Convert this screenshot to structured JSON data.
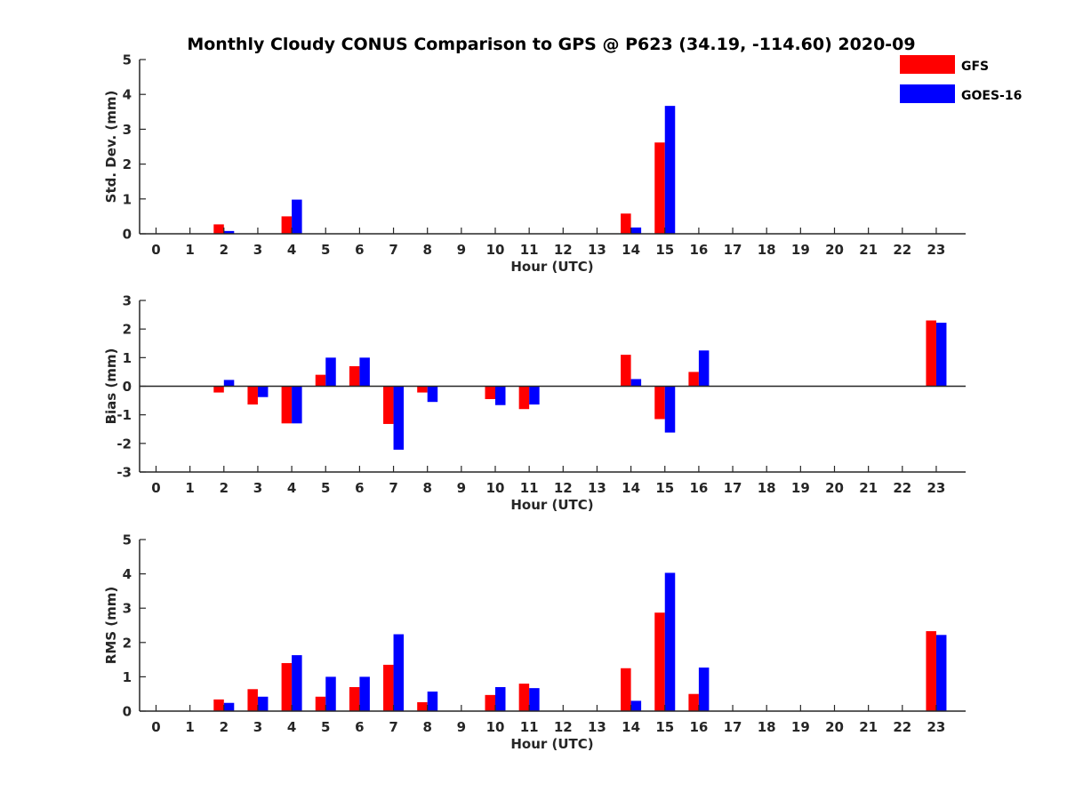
{
  "colors": {
    "gfs": "#ff0000",
    "goes": "#0000ff",
    "axis": "#262626"
  },
  "legend_position": "top-right",
  "chart_data": {
    "type": "bar",
    "title": "Monthly Cloudy CONUS Comparison to GPS @ P623 (34.19, -114.60) 2020-09",
    "legend": [
      "GFS",
      "GOES-16"
    ],
    "x": [
      0,
      1,
      2,
      3,
      4,
      5,
      6,
      7,
      8,
      9,
      10,
      11,
      12,
      13,
      14,
      15,
      16,
      17,
      18,
      19,
      20,
      21,
      22,
      23
    ],
    "xticklabels": [
      "0",
      "1",
      "2",
      "3",
      "4",
      "5",
      "6",
      "7",
      "8",
      "9",
      "10",
      "11",
      "12",
      "13",
      "14",
      "15",
      "16",
      "17",
      "18",
      "19",
      "20",
      "21",
      "22",
      "23"
    ],
    "panels": [
      {
        "ylabel": "Std. Dev. (mm)",
        "xlabel": "Hour (UTC)",
        "ylim": [
          0,
          5
        ],
        "yticks": [
          "0",
          "1",
          "2",
          "3",
          "4",
          "5"
        ],
        "series": [
          {
            "name": "GFS",
            "values": [
              0,
              0,
              0.27,
              0,
              0.5,
              0,
              0,
              0,
              0,
              0,
              0,
              0,
              0,
              0,
              0.58,
              2.62,
              0,
              0,
              0,
              0,
              0,
              0,
              0,
              0
            ]
          },
          {
            "name": "GOES-16",
            "values": [
              0,
              0,
              0.08,
              0,
              0.98,
              0,
              0,
              0,
              0,
              0,
              0,
              0,
              0,
              0,
              0.18,
              3.67,
              0,
              0,
              0,
              0,
              0,
              0,
              0,
              0
            ]
          }
        ]
      },
      {
        "ylabel": "Bias (mm)",
        "xlabel": "Hour (UTC)",
        "ylim": [
          -3,
          3
        ],
        "yticks": [
          "-3",
          "-2",
          "-1",
          "0",
          "1",
          "2",
          "3"
        ],
        "series": [
          {
            "name": "GFS",
            "values": [
              0,
              0,
              -0.22,
              -0.64,
              -1.3,
              0.4,
              0.7,
              -1.32,
              -0.22,
              0,
              -0.45,
              -0.8,
              0,
              0,
              1.1,
              -1.15,
              0.5,
              0,
              0,
              0,
              0,
              0,
              0,
              2.3
            ]
          },
          {
            "name": "GOES-16",
            "values": [
              0,
              0,
              0.22,
              -0.38,
              -1.3,
              1.0,
              1.0,
              -2.22,
              -0.55,
              0,
              -0.66,
              -0.64,
              0,
              0,
              0.25,
              -1.62,
              1.25,
              0,
              0,
              0,
              0,
              0,
              0,
              2.22
            ]
          }
        ]
      },
      {
        "ylabel": "RMS (mm)",
        "xlabel": "Hour (UTC)",
        "ylim": [
          0,
          5
        ],
        "yticks": [
          "0",
          "1",
          "2",
          "3",
          "4",
          "5"
        ],
        "series": [
          {
            "name": "GFS",
            "values": [
              0,
              0,
              0.34,
              0.64,
              1.4,
              0.42,
              0.7,
              1.35,
              0.26,
              0,
              0.47,
              0.8,
              0,
              0,
              1.25,
              2.87,
              0.5,
              0,
              0,
              0,
              0,
              0,
              0,
              2.33
            ]
          },
          {
            "name": "GOES-16",
            "values": [
              0,
              0,
              0.24,
              0.42,
              1.63,
              1.0,
              1.0,
              2.24,
              0.57,
              0,
              0.7,
              0.67,
              0,
              0,
              0.3,
              4.03,
              1.27,
              0,
              0,
              0,
              0,
              0,
              0,
              2.22
            ]
          }
        ]
      }
    ]
  }
}
